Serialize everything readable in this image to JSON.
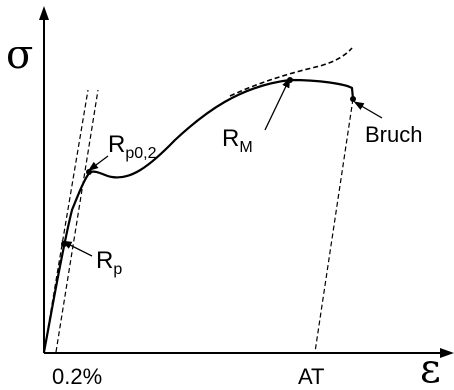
{
  "labels": {
    "sigma": "σ",
    "epsilon": "ε",
    "rp": {
      "main": "R",
      "sub": "p"
    },
    "rp02": {
      "main": "R",
      "sub": "p0,2"
    },
    "rm": {
      "main": "R",
      "sub": "M"
    },
    "bruch": "Bruch",
    "offset_tick": "0.2%",
    "at_tick": "AT"
  },
  "colors": {
    "line": "#000000",
    "background": "#ffffff"
  }
}
